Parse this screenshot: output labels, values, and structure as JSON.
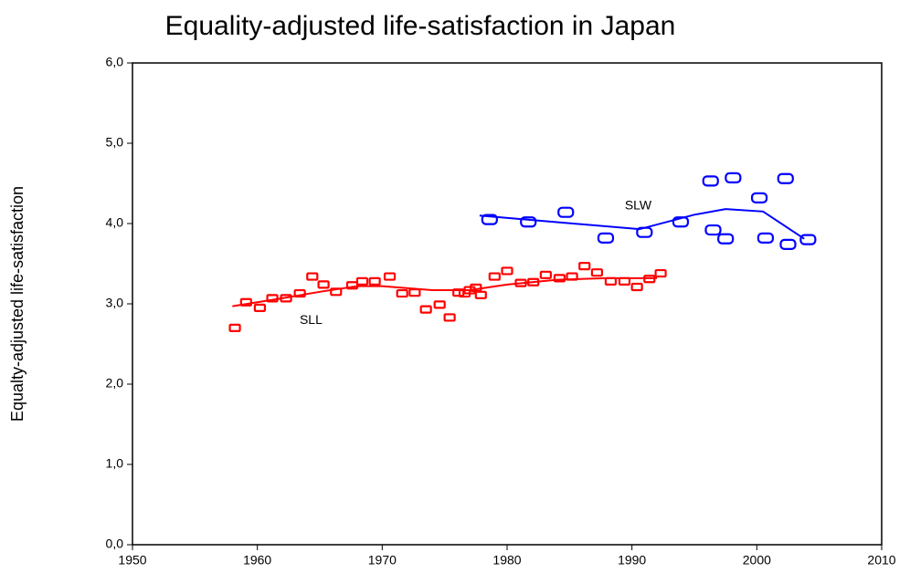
{
  "chart_data": {
    "type": "scatter",
    "title": "Equality-adjusted life-satisfaction in Japan",
    "y_label": "Equalty-adjusted life-satisfaction",
    "xlim": [
      1950,
      2010
    ],
    "xticks": [
      1950,
      1960,
      1970,
      1980,
      1990,
      2000,
      2010
    ],
    "ylim": [
      0,
      6
    ],
    "yticks": [
      {
        "value": 0,
        "label": "0,0"
      },
      {
        "value": 1,
        "label": "1,0"
      },
      {
        "value": 2,
        "label": "2,0"
      },
      {
        "value": 3,
        "label": "3,0"
      },
      {
        "value": 4,
        "label": "4,0"
      },
      {
        "value": 5,
        "label": "5,0"
      },
      {
        "value": 6,
        "label": "6,0"
      }
    ],
    "series": [
      {
        "name": "SLL",
        "color": "#ff0000",
        "x": [
          1958.2,
          1959.1,
          1960.2,
          1961.2,
          1962.3,
          1963.4,
          1964.4,
          1965.3,
          1966.3,
          1967.6,
          1968.4,
          1969.4,
          1970.6,
          1971.6,
          1972.6,
          1973.5,
          1974.6,
          1975.4,
          1976.1,
          1976.6,
          1977.0,
          1977.5,
          1977.9,
          1979.0,
          1980.0,
          1981.1,
          1982.1,
          1983.1,
          1984.2,
          1985.2,
          1986.2,
          1987.2,
          1988.3,
          1989.4,
          1990.4,
          1991.4,
          1992.3
        ],
        "values": [
          2.7,
          3.02,
          2.95,
          3.07,
          3.07,
          3.13,
          3.34,
          3.24,
          3.15,
          3.23,
          3.28,
          3.28,
          3.34,
          3.13,
          3.14,
          2.93,
          2.99,
          2.83,
          3.14,
          3.13,
          3.17,
          3.2,
          3.11,
          3.34,
          3.41,
          3.26,
          3.27,
          3.36,
          3.32,
          3.34,
          3.47,
          3.39,
          3.28,
          3.28,
          3.21,
          3.31,
          3.38
        ],
        "trend": {
          "x": [
            1958,
            1962,
            1965,
            1968,
            1970,
            1974,
            1977,
            1980,
            1984,
            1988,
            1992
          ],
          "values": [
            2.97,
            3.07,
            3.15,
            3.22,
            3.22,
            3.17,
            3.17,
            3.24,
            3.3,
            3.32,
            3.32
          ]
        }
      },
      {
        "name": "SLW",
        "color": "#0000ff",
        "x": [
          1978.6,
          1981.7,
          1984.7,
          1987.9,
          1991.0,
          1993.9,
          1996.3,
          1996.5,
          1997.5,
          1998.1,
          2000.2,
          2000.7,
          2002.3,
          2002.5,
          2004.1
        ],
        "values": [
          4.05,
          4.02,
          4.14,
          3.82,
          3.89,
          4.02,
          4.53,
          3.92,
          3.81,
          4.57,
          4.32,
          3.82,
          4.56,
          3.74,
          3.8
        ],
        "trend": {
          "x": [
            1977.8,
            1990.6,
            1995,
            1997.5,
            2000.5,
            2003.8
          ],
          "values": [
            4.1,
            3.93,
            4.11,
            4.18,
            4.15,
            3.81
          ]
        }
      }
    ],
    "annotations": [
      {
        "text": "SLL",
        "x": 1964.3,
        "y": 2.79
      },
      {
        "text": "SLW",
        "x": 1990.5,
        "y": 4.22
      }
    ]
  }
}
